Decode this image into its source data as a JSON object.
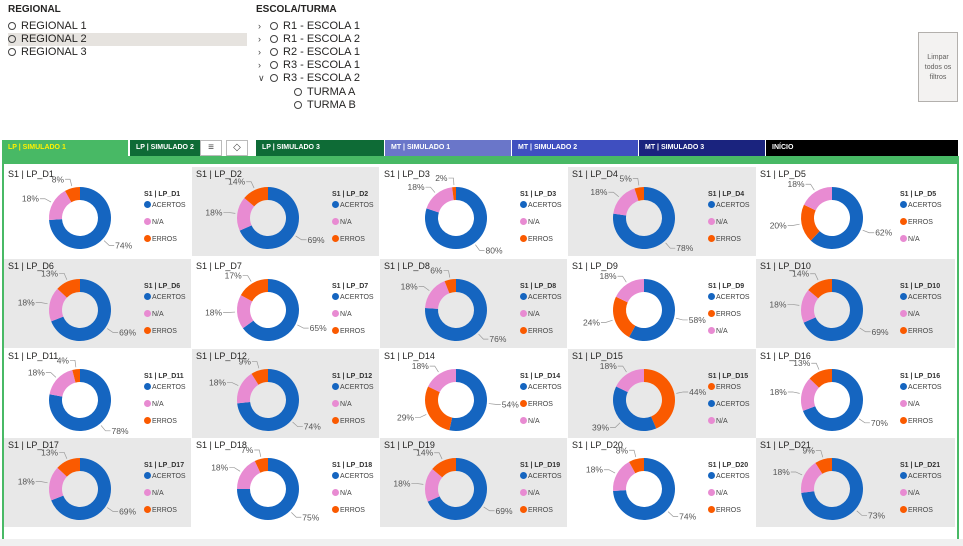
{
  "regional": {
    "title": "REGIONAL",
    "items": [
      "REGIONAL 1",
      "REGIONAL 2",
      "REGIONAL 3"
    ]
  },
  "escola": {
    "title": "ESCOLA/TURMA",
    "items": [
      "R1 - ESCOLA 1",
      "R1 - ESCOLA 2",
      "R2 - ESCOLA 1",
      "R3 - ESCOLA 1",
      "R3 - ESCOLA 2"
    ],
    "subitems": [
      "TURMA A",
      "TURMA B"
    ]
  },
  "clear_button": {
    "line1": "Limpar",
    "line2": "todos os",
    "line3": "filtros"
  },
  "tabs": [
    {
      "label": "LP | SIMULADO 1"
    },
    {
      "label": "LP | SIMULADO 2"
    },
    {
      "label": "LP | SIMULADO 3"
    },
    {
      "label": "MT | SIMULADO 1"
    },
    {
      "label": "MT | SIMULADO 2"
    },
    {
      "label": "MT | SIMULADO 3"
    },
    {
      "label": "INÍCIO"
    }
  ],
  "legend_labels": {
    "acertos": "ACERTOS",
    "na": "N/A",
    "erros": "ERROS"
  },
  "colors": {
    "acertos": "#1565c0",
    "na": "#e88bd2",
    "erros": "#fa5a00",
    "tab_lp": "#0e6b36",
    "tab_lp_active": "#48b965",
    "tab_mt1": "#6a76c9",
    "tab_mt2": "#3f4fc0",
    "tab_mt3": "#1a237e",
    "tab_inicio": "#000000",
    "active_tab_text": "#fff200"
  },
  "chart_data": [
    {
      "type": "pie",
      "title": "S1 | LP_D1",
      "legend_title": "S1 | LP_D1",
      "order": [
        "acertos",
        "na",
        "erros"
      ],
      "values": {
        "acertos": 74,
        "na": 18,
        "erros": 8
      },
      "labels": {
        "acertos": "74%",
        "na": "18%",
        "erros": "8%"
      }
    },
    {
      "type": "pie",
      "title": "S1 | LP_D2",
      "legend_title": "S1 | LP_D2",
      "order": [
        "acertos",
        "na",
        "erros"
      ],
      "values": {
        "acertos": 69,
        "na": 18,
        "erros": 14
      },
      "labels": {
        "acertos": "69%",
        "na": "18%",
        "erros": "14%"
      }
    },
    {
      "type": "pie",
      "title": "S1 | LP_D3",
      "legend_title": "S1 | LP_D3",
      "order": [
        "acertos",
        "na",
        "erros"
      ],
      "values": {
        "acertos": 80,
        "na": 18,
        "erros": 2
      },
      "labels": {
        "acertos": "80%",
        "na": "18%",
        "erros": "2%"
      }
    },
    {
      "type": "pie",
      "title": "S1 | LP_D4",
      "legend_title": "S1 | LP_D4",
      "order": [
        "acertos",
        "na",
        "erros"
      ],
      "values": {
        "acertos": 78,
        "na": 18,
        "erros": 5
      },
      "labels": {
        "acertos": "78%",
        "na": "18%",
        "erros": "5%"
      }
    },
    {
      "type": "pie",
      "title": "S1 | LP_D5",
      "legend_title": "S1 | LP_D5",
      "order": [
        "acertos",
        "erros",
        "na"
      ],
      "values": {
        "acertos": 62,
        "na": 18,
        "erros": 20
      },
      "labels": {
        "acertos": "62%",
        "na": "18%",
        "erros": "20%"
      }
    },
    {
      "type": "pie",
      "title": "S1 | LP_D6",
      "legend_title": "S1 | LP_D6",
      "order": [
        "acertos",
        "na",
        "erros"
      ],
      "values": {
        "acertos": 69,
        "na": 18,
        "erros": 13
      },
      "labels": {
        "acertos": "69%",
        "na": "18%",
        "erros": "13%"
      }
    },
    {
      "type": "pie",
      "title": "S1 | LP_D7",
      "legend_title": "S1 | LP_D7",
      "order": [
        "acertos",
        "na",
        "erros"
      ],
      "values": {
        "acertos": 65,
        "na": 18,
        "erros": 17
      },
      "labels": {
        "acertos": "65%",
        "na": "18%",
        "erros": "17%"
      }
    },
    {
      "type": "pie",
      "title": "S1 | LP_D8",
      "legend_title": "S1 | LP_D8",
      "order": [
        "acertos",
        "na",
        "erros"
      ],
      "values": {
        "acertos": 76,
        "na": 18,
        "erros": 6
      },
      "labels": {
        "acertos": "76%",
        "na": "18%",
        "erros": "6%"
      }
    },
    {
      "type": "pie",
      "title": "S1 | LP_D9",
      "legend_title": "S1 | LP_D9",
      "order": [
        "acertos",
        "erros",
        "na"
      ],
      "values": {
        "acertos": 58,
        "na": 18,
        "erros": 24
      },
      "labels": {
        "acertos": "58%",
        "na": "18%",
        "erros": "24%"
      }
    },
    {
      "type": "pie",
      "title": "S1 | LP_D10",
      "legend_title": "S1 | LP_D10",
      "order": [
        "acertos",
        "na",
        "erros"
      ],
      "values": {
        "acertos": 69,
        "na": 18,
        "erros": 14
      },
      "labels": {
        "acertos": "69%",
        "na": "18%",
        "erros": "14%"
      }
    },
    {
      "type": "pie",
      "title": "S1 | LP_D11",
      "legend_title": "S1 | LP_D11",
      "order": [
        "acertos",
        "na",
        "erros"
      ],
      "values": {
        "acertos": 78,
        "na": 18,
        "erros": 4
      },
      "labels": {
        "acertos": "78%",
        "na": "18%",
        "erros": "4%"
      }
    },
    {
      "type": "pie",
      "title": "S1 | LP_D12",
      "legend_title": "S1 | LP_D12",
      "order": [
        "acertos",
        "na",
        "erros"
      ],
      "values": {
        "acertos": 74,
        "na": 18,
        "erros": 9
      },
      "labels": {
        "acertos": "74%",
        "na": "18%",
        "erros": "9%"
      }
    },
    {
      "type": "pie",
      "title": "S1 | LP_D14",
      "legend_title": "S1 | LP_D14",
      "order": [
        "acertos",
        "erros",
        "na"
      ],
      "values": {
        "acertos": 54,
        "na": 18,
        "erros": 29
      },
      "labels": {
        "acertos": "54%",
        "na": "18%",
        "erros": "29%"
      }
    },
    {
      "type": "pie",
      "title": "S1 | LP_D15",
      "legend_title": "S1 | LP_D15",
      "order": [
        "erros",
        "acertos",
        "na"
      ],
      "values": {
        "acertos": 39,
        "na": 18,
        "erros": 44
      },
      "labels": {
        "acertos": "39%",
        "na": "18%",
        "erros": "44%"
      }
    },
    {
      "type": "pie",
      "title": "S1 | LP_D16",
      "legend_title": "S1 | LP_D16",
      "order": [
        "acertos",
        "na",
        "erros"
      ],
      "values": {
        "acertos": 70,
        "na": 18,
        "erros": 13
      },
      "labels": {
        "acertos": "70%",
        "na": "18%",
        "erros": "13%"
      }
    },
    {
      "type": "pie",
      "title": "S1 | LP_D17",
      "legend_title": "S1 | LP_D17",
      "order": [
        "acertos",
        "na",
        "erros"
      ],
      "values": {
        "acertos": 69,
        "na": 18,
        "erros": 13
      },
      "labels": {
        "acertos": "69%",
        "na": "18%",
        "erros": "13%"
      }
    },
    {
      "type": "pie",
      "title": "S1 | LP_D18",
      "legend_title": "S1 | LP_D18",
      "order": [
        "acertos",
        "na",
        "erros"
      ],
      "values": {
        "acertos": 75,
        "na": 18,
        "erros": 7
      },
      "labels": {
        "acertos": "75%",
        "na": "18%",
        "erros": "7%"
      }
    },
    {
      "type": "pie",
      "title": "S1 | LP_D19",
      "legend_title": "S1 | LP_D19",
      "order": [
        "acertos",
        "na",
        "erros"
      ],
      "values": {
        "acertos": 69,
        "na": 18,
        "erros": 14
      },
      "labels": {
        "acertos": "69%",
        "na": "18%",
        "erros": "14%"
      }
    },
    {
      "type": "pie",
      "title": "S1 | LP_D20",
      "legend_title": "S1 | LP_D20",
      "order": [
        "acertos",
        "na",
        "erros"
      ],
      "values": {
        "acertos": 74,
        "na": 18,
        "erros": 8
      },
      "labels": {
        "acertos": "74%",
        "na": "18%",
        "erros": "8%"
      }
    },
    {
      "type": "pie",
      "title": "S1 | LP_D21",
      "legend_title": "S1 | LP_D21",
      "order": [
        "acertos",
        "na",
        "erros"
      ],
      "values": {
        "acertos": 73,
        "na": 18,
        "erros": 9
      },
      "labels": {
        "acertos": "73%",
        "na": "18%",
        "erros": "9%"
      }
    }
  ]
}
